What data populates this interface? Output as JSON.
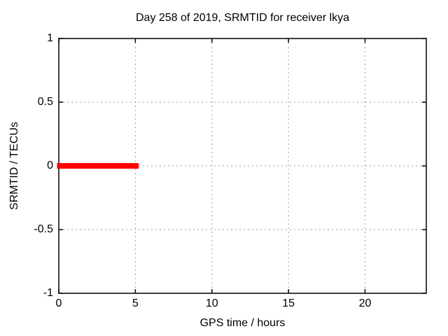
{
  "chart_data": {
    "type": "scatter",
    "title": "Day 258 of 2019, SRMTID for receiver lkya",
    "xlabel": "GPS time / hours",
    "ylabel": "SRMTID / TECUs",
    "xlim": [
      0,
      24
    ],
    "ylim": [
      -1,
      1
    ],
    "xticks": [
      0,
      5,
      10,
      15,
      20
    ],
    "xticklabels": [
      "0",
      "5",
      "10",
      "15",
      "20"
    ],
    "yticks": [
      1,
      0.5,
      0,
      -0.5,
      -1
    ],
    "yticklabels": [
      "1",
      "0.5",
      "0",
      "-0.5",
      "-1"
    ],
    "grid": true,
    "grid_style": "dotted",
    "legend": "none",
    "series": [
      {
        "name": "SRMTID",
        "marker": "filled-square",
        "color": "#ff0000",
        "y_value": 0,
        "x_segments": [
          [
            0.02,
            0.73
          ],
          [
            0.87,
            1.42
          ],
          [
            1.52,
            1.68
          ],
          [
            1.86,
            2.09
          ],
          [
            2.24,
            5.08
          ]
        ]
      }
    ]
  },
  "colors": {
    "background": "#ffffff",
    "text": "#000000",
    "border": "#000000",
    "grid": "#9e9e9e",
    "data": "#ff0000"
  }
}
